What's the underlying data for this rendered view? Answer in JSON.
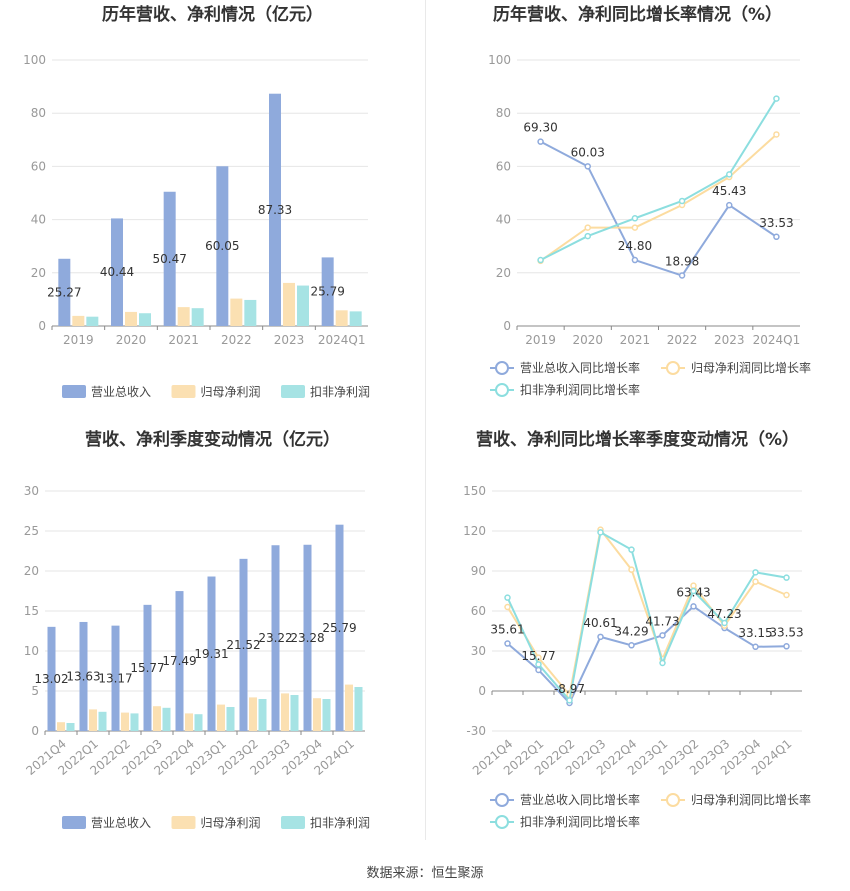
{
  "source": "数据来源：恒生聚源",
  "colors": {
    "revenue": "#8faadc",
    "profit": "#fbe0b2",
    "deducted": "#a6e3e4",
    "revenue_line": "#8faadc",
    "profit_line": "#fcdca0",
    "deducted_line": "#8cdedf",
    "grid": "#e6e6e6",
    "axis_text": "#999999"
  },
  "chart_data": [
    {
      "type": "bar",
      "title": "历年营收、净利情况（亿元）",
      "categories": [
        "2019",
        "2020",
        "2021",
        "2022",
        "2023",
        "2024Q1"
      ],
      "series": [
        {
          "name": "营业总收入",
          "values": [
            25.27,
            40.44,
            50.47,
            60.05,
            87.33,
            25.79
          ],
          "labels": [
            "25.27",
            "40.44",
            "50.47",
            "60.05",
            "87.33",
            "25.79"
          ]
        },
        {
          "name": "归母净利润",
          "values": [
            3.8,
            5.3,
            7.1,
            10.3,
            16.2,
            5.9
          ]
        },
        {
          "name": "扣非净利润",
          "values": [
            3.5,
            4.8,
            6.7,
            9.8,
            15.2,
            5.5
          ]
        }
      ],
      "ylim": [
        0,
        100
      ],
      "yticks": [
        0,
        20,
        40,
        60,
        80,
        100
      ],
      "legend": "bottom"
    },
    {
      "type": "line",
      "title": "历年营收、净利同比增长率情况（%）",
      "categories": [
        "2019",
        "2020",
        "2021",
        "2022",
        "2023",
        "2024Q1"
      ],
      "series": [
        {
          "name": "营业总收入同比增长率",
          "values": [
            69.3,
            60.03,
            24.8,
            18.98,
            45.43,
            33.53
          ],
          "labels": [
            "69.30",
            "60.03",
            "24.80",
            "18.98",
            "45.43",
            "33.53"
          ]
        },
        {
          "name": "归母净利润同比增长率",
          "values": [
            24.5,
            37.0,
            37.0,
            45.5,
            56.0,
            72.0
          ]
        },
        {
          "name": "扣非净利润同比增长率",
          "values": [
            24.8,
            33.8,
            40.5,
            47.0,
            57.0,
            85.5
          ]
        }
      ],
      "ylim": [
        0,
        100
      ],
      "yticks": [
        0,
        20,
        40,
        60,
        80,
        100
      ],
      "legend": "bottom"
    },
    {
      "type": "bar",
      "title": "营收、净利季度变动情况（亿元）",
      "categories": [
        "2021Q4",
        "2022Q1",
        "2022Q2",
        "2022Q3",
        "2022Q4",
        "2023Q1",
        "2023Q2",
        "2023Q3",
        "2023Q4",
        "2024Q1"
      ],
      "series": [
        {
          "name": "营业总收入",
          "values": [
            13.02,
            13.63,
            13.17,
            15.77,
            17.49,
            19.31,
            21.52,
            23.22,
            23.28,
            25.79
          ],
          "labels": [
            "13.02",
            "13.63",
            "13.17",
            "15.77",
            "17.49",
            "19.31",
            "21.52",
            "23.22",
            "23.28",
            "25.79"
          ]
        },
        {
          "name": "归母净利润",
          "values": [
            1.1,
            2.7,
            2.3,
            3.1,
            2.2,
            3.3,
            4.2,
            4.7,
            4.1,
            5.8
          ]
        },
        {
          "name": "扣非净利润",
          "values": [
            1.0,
            2.4,
            2.2,
            2.9,
            2.1,
            3.0,
            4.0,
            4.5,
            4.0,
            5.5
          ]
        }
      ],
      "ylim": [
        0,
        30
      ],
      "yticks": [
        0,
        5,
        10,
        15,
        20,
        25,
        30
      ],
      "legend": "bottom"
    },
    {
      "type": "line",
      "title": "营收、净利同比增长率季度变动情况（%）",
      "categories": [
        "2021Q4",
        "2022Q1",
        "2022Q2",
        "2022Q3",
        "2022Q4",
        "2023Q1",
        "2023Q2",
        "2023Q3",
        "2023Q4",
        "2024Q1"
      ],
      "series": [
        {
          "name": "营业总收入同比增长率",
          "values": [
            35.61,
            15.77,
            -8.97,
            40.61,
            34.29,
            41.73,
            63.43,
            47.23,
            33.15,
            33.53
          ],
          "labels": [
            "35.61",
            "15.77",
            "-8.97",
            "40.61",
            "34.29",
            "41.73",
            "63.43",
            "47.23",
            "33.15",
            "33.53"
          ]
        },
        {
          "name": "归母净利润同比增长率",
          "values": [
            63,
            25,
            -3,
            121,
            91,
            24,
            79,
            49,
            82,
            72
          ]
        },
        {
          "name": "扣非净利润同比增长率",
          "values": [
            70,
            20,
            -7,
            119,
            106,
            21,
            75,
            51,
            89,
            85
          ]
        }
      ],
      "ylim": [
        -30,
        150
      ],
      "yticks": [
        -30,
        0,
        30,
        60,
        90,
        120,
        150
      ],
      "legend": "bottom"
    }
  ]
}
